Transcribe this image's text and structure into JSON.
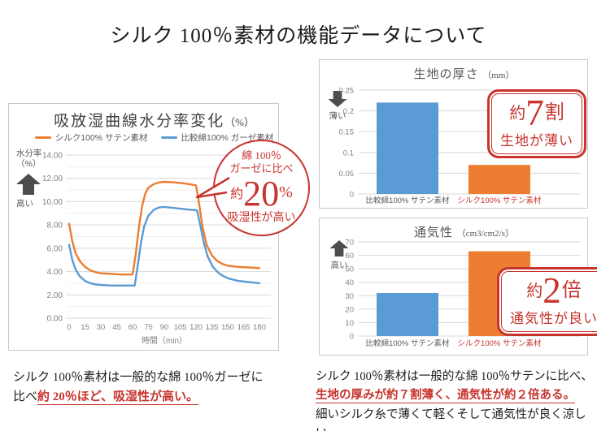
{
  "page_title": "シルク 100％素材の機能データについて",
  "accent": {
    "red": "#C7342E",
    "orange": "#ED7D31",
    "blue": "#5B9BD5"
  },
  "moisture_panel": {
    "title": "吸放湿曲線水分率変化",
    "title_unit": "（%）",
    "legend": [
      {
        "label": "シルク100% サテン素材",
        "color": "#ED7D31"
      },
      {
        "label": "比較綿100% ガーゼ素材",
        "color": "#5B9BD5"
      }
    ],
    "y_axis_name": "水分率",
    "y_axis_unit": "（%）",
    "y_arrow_label": "高い",
    "bubble": {
      "line1": "綿 100％",
      "line2": "ガーゼに比べ",
      "approx": "約",
      "value": "20",
      "unit": "%",
      "line4": "吸湿性が高い"
    }
  },
  "thickness_panel": {
    "title": "生地の厚さ",
    "title_unit": "（mm）",
    "arrow_label": "薄い",
    "badge": {
      "approx": "約",
      "value": "7",
      "suffix": "割",
      "caption": "生地が薄い"
    }
  },
  "airflow_panel": {
    "title": "通気性",
    "title_unit": "（cm3/cm2/s）",
    "arrow_label": "高い",
    "badge": {
      "approx": "約",
      "value": "2",
      "suffix": "倍",
      "caption": "通気性が良い"
    }
  },
  "captions": {
    "left_line1": "シルク 100％素材は一般的な綿 100％ガーゼに",
    "left_line2_prefix": "比べ",
    "left_red": "約 20％ほど、吸湿性が高い。",
    "right_line1": "シルク 100％素材は一般的な綿 100％サテンに比べ、",
    "right_red": "生地の厚みが約７割薄く、通気性が約２倍ある。",
    "right_line3": "細いシルク糸で薄くて軽くそして通気性が良く涼しい"
  },
  "chart_data": [
    {
      "type": "line",
      "title": "吸放湿曲線水分率変化（%）",
      "xlabel": "時間（min）",
      "ylabel": "水分率（%）",
      "x_ticks": [
        0,
        15,
        30,
        45,
        60,
        75,
        90,
        105,
        120,
        135,
        150,
        165,
        180
      ],
      "xlim": [
        0,
        180
      ],
      "ylim": [
        0,
        14
      ],
      "y_tick_step": 2,
      "grid": true,
      "legend_position": "top",
      "series": [
        {
          "name": "シルク100% サテン素材",
          "color": "#ED7D31",
          "points": [
            [
              0,
              8.1
            ],
            [
              3,
              6.6
            ],
            [
              6,
              5.6
            ],
            [
              10,
              4.9
            ],
            [
              15,
              4.4
            ],
            [
              20,
              4.1
            ],
            [
              25,
              3.95
            ],
            [
              30,
              3.85
            ],
            [
              40,
              3.8
            ],
            [
              50,
              3.75
            ],
            [
              60,
              3.75
            ],
            [
              63,
              5.5
            ],
            [
              66,
              7.8
            ],
            [
              69,
              9.6
            ],
            [
              72,
              10.7
            ],
            [
              75,
              11.2
            ],
            [
              80,
              11.5
            ],
            [
              85,
              11.65
            ],
            [
              90,
              11.7
            ],
            [
              100,
              11.65
            ],
            [
              110,
              11.55
            ],
            [
              120,
              11.4
            ],
            [
              123,
              9.8
            ],
            [
              126,
              7.9
            ],
            [
              130,
              6.3
            ],
            [
              135,
              5.4
            ],
            [
              140,
              4.9
            ],
            [
              145,
              4.65
            ],
            [
              150,
              4.5
            ],
            [
              160,
              4.4
            ],
            [
              170,
              4.35
            ],
            [
              180,
              4.3
            ]
          ]
        },
        {
          "name": "比較綿100% ガーゼ素材",
          "color": "#5B9BD5",
          "points": [
            [
              0,
              6.3
            ],
            [
              3,
              5.0
            ],
            [
              6,
              4.2
            ],
            [
              10,
              3.6
            ],
            [
              15,
              3.2
            ],
            [
              20,
              3.0
            ],
            [
              25,
              2.9
            ],
            [
              30,
              2.85
            ],
            [
              40,
              2.8
            ],
            [
              50,
              2.8
            ],
            [
              62,
              2.8
            ],
            [
              65,
              4.6
            ],
            [
              68,
              6.5
            ],
            [
              71,
              7.9
            ],
            [
              75,
              8.8
            ],
            [
              80,
              9.3
            ],
            [
              85,
              9.5
            ],
            [
              90,
              9.55
            ],
            [
              100,
              9.45
            ],
            [
              110,
              9.35
            ],
            [
              121,
              9.25
            ],
            [
              124,
              8.0
            ],
            [
              127,
              6.6
            ],
            [
              131,
              5.3
            ],
            [
              136,
              4.4
            ],
            [
              141,
              3.9
            ],
            [
              146,
              3.6
            ],
            [
              151,
              3.4
            ],
            [
              160,
              3.2
            ],
            [
              170,
              3.1
            ],
            [
              180,
              3.0
            ]
          ]
        }
      ]
    },
    {
      "type": "bar",
      "title": "生地の厚さ（mm）",
      "categories": [
        "比較綿100% サテン素材",
        "シルク100% サテン素材"
      ],
      "values": [
        0.22,
        0.07
      ],
      "bar_colors": [
        "#5B9BD5",
        "#ED7D31"
      ],
      "label_colors": [
        "#595959",
        "#C7342E"
      ],
      "ylim": [
        0,
        0.25
      ],
      "y_ticks": [
        {
          "v": 0.25,
          "t": "0.25"
        },
        {
          "v": 0.2,
          "t": "0.2"
        },
        {
          "v": 0.15,
          "t": "0.15"
        },
        {
          "v": 0.1,
          "t": "0.1"
        },
        {
          "v": 0.05,
          "t": "0.05"
        },
        {
          "v": 0,
          "t": "0"
        }
      ],
      "grid": true
    },
    {
      "type": "bar",
      "title": "通気性（cm3/cm2/s）",
      "categories": [
        "比較綿100% サテン素材",
        "シルク100% サテン素材"
      ],
      "values": [
        32,
        63
      ],
      "bar_colors": [
        "#5B9BD5",
        "#ED7D31"
      ],
      "label_colors": [
        "#595959",
        "#C7342E"
      ],
      "ylim": [
        0,
        70
      ],
      "y_ticks": [
        {
          "v": 70,
          "t": "70"
        },
        {
          "v": 60,
          "t": "60"
        },
        {
          "v": 50,
          "t": "50"
        },
        {
          "v": 40,
          "t": "40"
        },
        {
          "v": 30,
          "t": "30"
        },
        {
          "v": 20,
          "t": "20"
        },
        {
          "v": 10,
          "t": "10"
        },
        {
          "v": 0,
          "t": "0"
        }
      ],
      "grid": true
    }
  ]
}
